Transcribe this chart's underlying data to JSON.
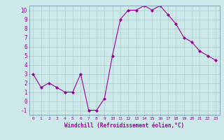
{
  "hours": [
    0,
    1,
    2,
    3,
    4,
    5,
    6,
    7,
    8,
    9,
    10,
    11,
    12,
    13,
    14,
    15,
    16,
    17,
    18,
    19,
    20,
    21,
    22,
    23
  ],
  "values": [
    3,
    1.5,
    2,
    1.5,
    1,
    1,
    3,
    -1,
    -1,
    0.3,
    5,
    9,
    10,
    10,
    10.5,
    10,
    10.5,
    9.5,
    8.5,
    7,
    6.5,
    5.5,
    5,
    4.5
  ],
  "line_color": "#990099",
  "marker": "D",
  "marker_size": 2,
  "bg_color": "#cce8e8",
  "grid_color": "#aacccc",
  "xlabel": "Windchill (Refroidissement éolien,°C)",
  "xlabel_color": "#990099",
  "tick_color": "#990099",
  "ylim": [
    -1.5,
    10.5
  ],
  "yticks": [
    -1,
    0,
    1,
    2,
    3,
    4,
    5,
    6,
    7,
    8,
    9,
    10
  ],
  "xlim": [
    -0.5,
    23.5
  ],
  "spine_color": "#7799aa"
}
